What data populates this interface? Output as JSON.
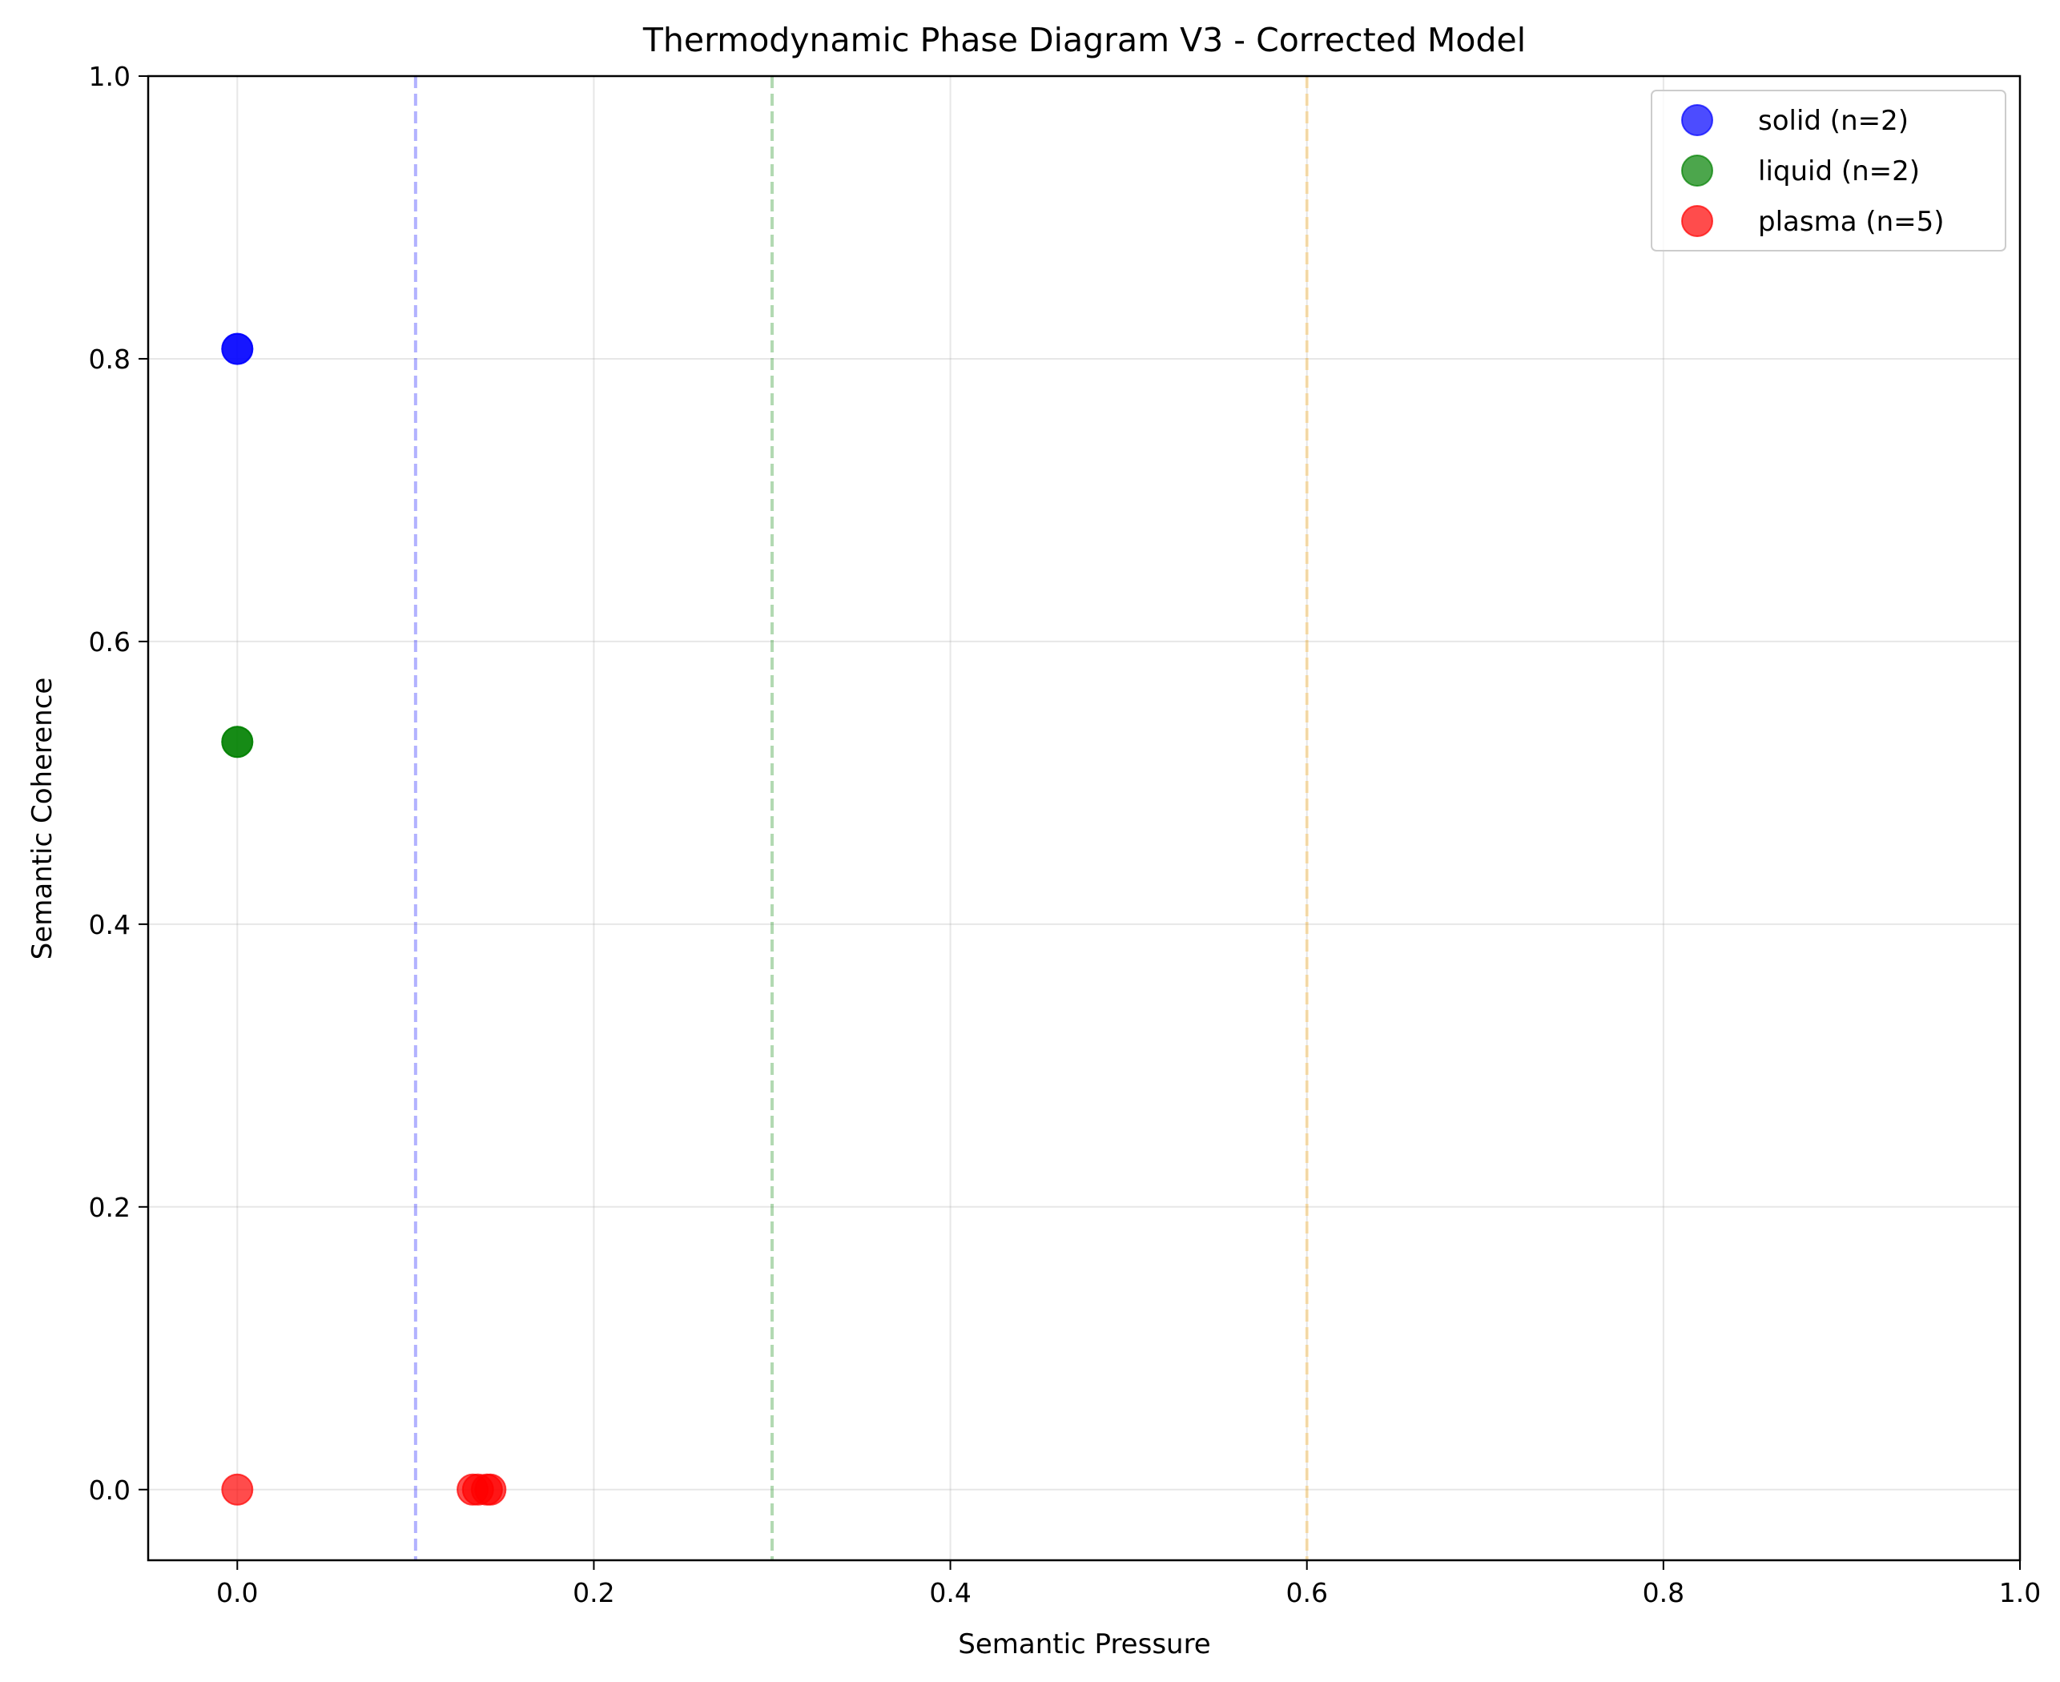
{
  "chart_data": {
    "type": "scatter",
    "title": "Thermodynamic Phase Diagram V3 - Corrected Model",
    "xlabel": "Semantic Pressure",
    "ylabel": "Semantic Coherence",
    "xlim": [
      -0.05,
      1.0
    ],
    "ylim": [
      -0.05,
      1.0
    ],
    "xticks": [
      0.0,
      0.2,
      0.4,
      0.6,
      0.8,
      1.0
    ],
    "xtick_labels": [
      "0.0",
      "0.2",
      "0.4",
      "0.6",
      "0.8",
      "1.0"
    ],
    "yticks": [
      0.0,
      0.2,
      0.4,
      0.6,
      0.8,
      1.0
    ],
    "ytick_labels": [
      "0.0",
      "0.2",
      "0.4",
      "0.6",
      "0.8",
      "1.0"
    ],
    "grid": true,
    "legend_position": "top-right",
    "series": [
      {
        "name": "solid (n=2)",
        "color": "#0000ff",
        "points": [
          {
            "x": 0.0,
            "y": 0.807
          },
          {
            "x": 0.0,
            "y": 0.807
          }
        ]
      },
      {
        "name": "liquid (n=2)",
        "color": "#008000",
        "points": [
          {
            "x": 0.0,
            "y": 0.529
          },
          {
            "x": 0.0,
            "y": 0.529
          }
        ]
      },
      {
        "name": "plasma (n=5)",
        "color": "#ff0000",
        "points": [
          {
            "x": 0.0,
            "y": 0.0
          },
          {
            "x": 0.132,
            "y": 0.0
          },
          {
            "x": 0.135,
            "y": 0.0
          },
          {
            "x": 0.14,
            "y": 0.0
          },
          {
            "x": 0.142,
            "y": 0.0
          }
        ]
      }
    ],
    "threshold_lines": [
      {
        "x": 0.1,
        "color": "#0000ff"
      },
      {
        "x": 0.3,
        "color": "#008000"
      },
      {
        "x": 0.6,
        "color": "#ffa500"
      }
    ]
  }
}
